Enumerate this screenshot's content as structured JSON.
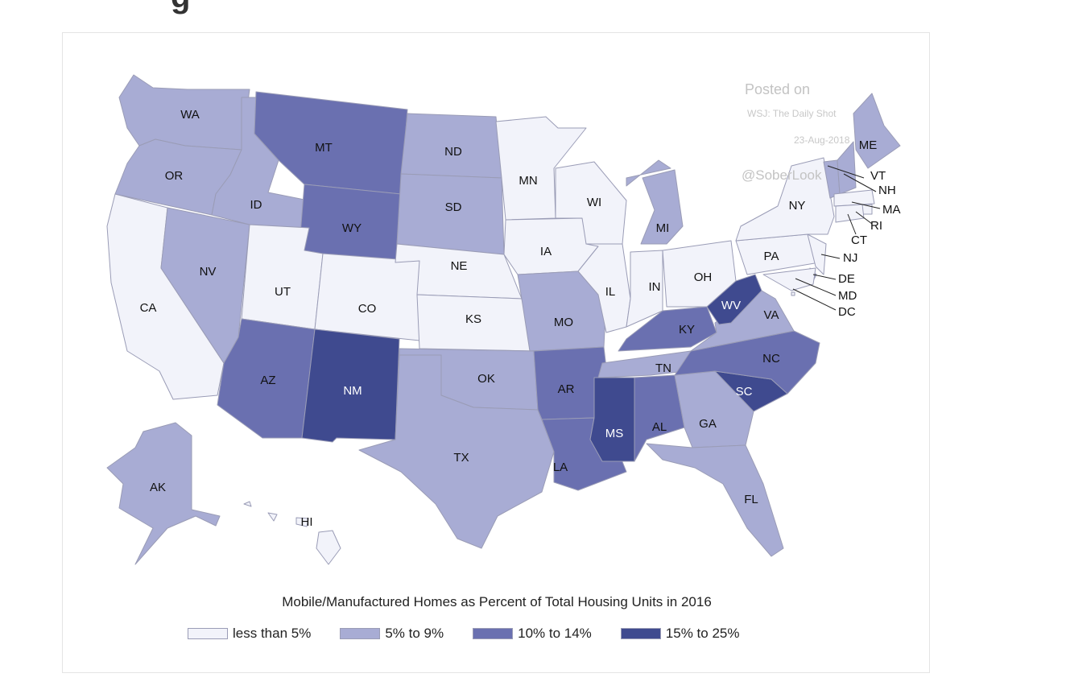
{
  "map": {
    "type": "choropleth",
    "caption": "Mobile/Manufactured Homes as Percent of Total Housing Units in 2016",
    "legend": [
      {
        "label": "less than 5%",
        "color": "#f2f3fa"
      },
      {
        "label": "5% to 9%",
        "color": "#a8acd4"
      },
      {
        "label": "10% to 14%",
        "color": "#6a70b0"
      },
      {
        "label": "15% to 25%",
        "color": "#3f4a8f"
      }
    ],
    "watermark": {
      "line1": "Posted on",
      "line2": "WSJ: The Daily Shot",
      "line3": "23-Aug-2018",
      "line4": "@SoberLook"
    },
    "states": {
      "WA": 1,
      "OR": 1,
      "CA": 0,
      "NV": 1,
      "ID": 1,
      "MT": 2,
      "WY": 2,
      "UT": 0,
      "CO": 0,
      "AZ": 2,
      "NM": 3,
      "ND": 1,
      "SD": 1,
      "NE": 0,
      "KS": 0,
      "OK": 1,
      "TX": 1,
      "MN": 0,
      "IA": 0,
      "MO": 1,
      "AR": 2,
      "LA": 2,
      "WI": 0,
      "IL": 0,
      "MI": 1,
      "IN": 0,
      "OH": 0,
      "KY": 2,
      "TN": 1,
      "MS": 3,
      "AL": 2,
      "GA": 1,
      "FL": 1,
      "SC": 3,
      "NC": 2,
      "VA": 1,
      "WV": 3,
      "PA": 0,
      "NY": 0,
      "ME": 1,
      "VT": 1,
      "NH": 1,
      "MA": 0,
      "RI": 0,
      "CT": 0,
      "NJ": 0,
      "DE": 1,
      "MD": 0,
      "DC": 0,
      "AK": 1,
      "HI": 0
    }
  }
}
